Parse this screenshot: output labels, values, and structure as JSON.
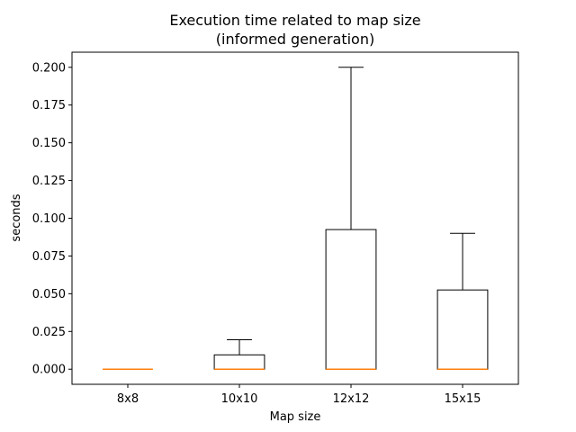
{
  "chart_data": {
    "type": "boxplot",
    "title_line1": "Execution time related to map size",
    "title_line2": "(informed generation)",
    "xlabel": "Map size",
    "ylabel": "seconds",
    "ylim": [
      -0.01,
      0.21
    ],
    "yticks": [
      0.0,
      0.025,
      0.05,
      0.075,
      0.1,
      0.125,
      0.15,
      0.175,
      0.2
    ],
    "ytick_labels": [
      "0.000",
      "0.025",
      "0.050",
      "0.075",
      "0.100",
      "0.125",
      "0.150",
      "0.175",
      "0.200"
    ],
    "categories": [
      "8x8",
      "10x10",
      "12x12",
      "15x15"
    ],
    "boxes": [
      {
        "whisker_low": 0.0,
        "q1": 0.0,
        "median": 0.0,
        "q3": 0.0,
        "whisker_high": 0.0
      },
      {
        "whisker_low": 0.0,
        "q1": 0.0,
        "median": 0.0,
        "q3": 0.0095,
        "whisker_high": 0.0195
      },
      {
        "whisker_low": 0.0,
        "q1": 0.0,
        "median": 0.0,
        "q3": 0.0925,
        "whisker_high": 0.2
      },
      {
        "whisker_low": 0.0,
        "q1": 0.0,
        "median": 0.0,
        "q3": 0.0525,
        "whisker_high": 0.09
      }
    ],
    "grid": false,
    "colors": {
      "box": "#000000",
      "median": "#ff7f0e"
    }
  }
}
